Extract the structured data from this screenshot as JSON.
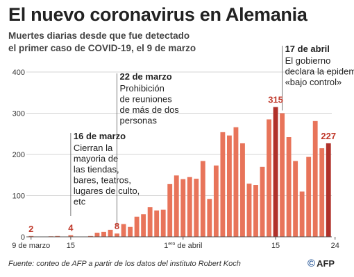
{
  "title": "El nuevo coronavirus en Alemania",
  "subtitle_lines": [
    "Muertes diarias desde que fue detectado",
    "el primer caso de COVID-19, el 9 de marzo"
  ],
  "source": "Fuente: conteo de AFP a partir  de los datos del instituto Robert Koch",
  "logo": {
    "symbol": "©",
    "text": "AFP"
  },
  "colors": {
    "bar": "#e8745a",
    "bar_highlight": "#b0312a",
    "label_highlight": "#c0392b",
    "grid": "#d4d4d4",
    "axis_text": "#333333",
    "annotation_line": "#555555"
  },
  "chart_data": {
    "type": "bar",
    "title": "El nuevo coronavirus en Alemania",
    "ylim": [
      0,
      400
    ],
    "yticks": [
      0,
      100,
      200,
      300,
      400
    ],
    "x_tick_labels": [
      {
        "index": 0,
        "label": "9 de marzo"
      },
      {
        "index": 6,
        "label": "15"
      },
      {
        "index": 23,
        "label": "1ero de abril",
        "sup": "ero",
        "pre": "1",
        "post": " de abril"
      },
      {
        "index": 37,
        "label": "15"
      },
      {
        "index": 46,
        "label": "24"
      }
    ],
    "x_start": "2020-03-09",
    "x_end": "2020-04-24",
    "values": [
      2,
      0,
      0,
      1,
      2,
      0,
      4,
      0,
      0,
      2,
      10,
      12,
      17,
      8,
      31,
      24,
      49,
      55,
      72,
      64,
      66,
      128,
      149,
      140,
      145,
      141,
      184,
      92,
      173,
      254,
      246,
      266,
      227,
      129,
      126,
      170,
      285,
      315,
      300,
      242,
      184,
      110,
      194,
      281,
      215,
      227
    ],
    "highlight_indices": [
      37,
      45
    ],
    "data_labels": [
      {
        "index": 0,
        "text": "2"
      },
      {
        "index": 6,
        "text": "4"
      },
      {
        "index": 13,
        "text": "8"
      },
      {
        "index": 37,
        "text": "315"
      },
      {
        "index": 45,
        "text": "227"
      }
    ],
    "annotations": [
      {
        "index": 6,
        "heading": "16 de marzo",
        "lines": [
          "Cierran la",
          "mayoria de",
          "las tiendas,",
          "bares, teatros,",
          "lugares de culto,",
          "etc"
        ]
      },
      {
        "index": 13,
        "heading": "22 de marzo",
        "lines": [
          "Prohibición",
          "de reuniones",
          "de más de dos",
          "personas"
        ]
      },
      {
        "index": 38,
        "heading": "17 de abril",
        "lines": [
          "El gobierno",
          "declara la epidemia",
          "«bajo control»"
        ]
      }
    ]
  }
}
